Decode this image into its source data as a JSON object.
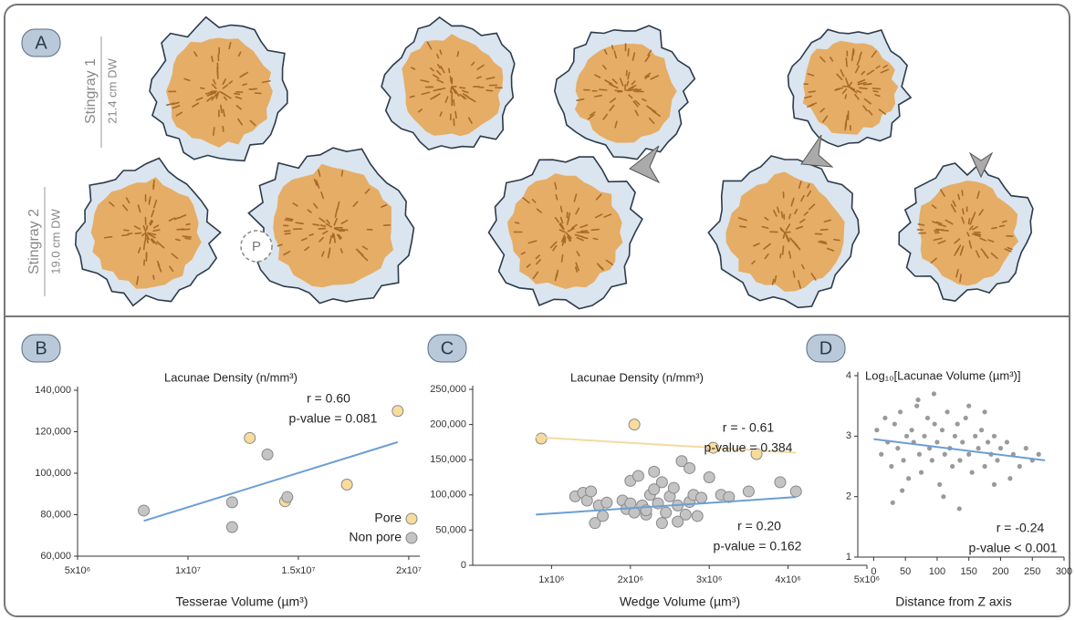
{
  "panel_labels": [
    "A",
    "B",
    "C",
    "D"
  ],
  "specimens": [
    {
      "name": "Stingray 1",
      "size": "21.4 cm DW"
    },
    {
      "name": "Stingray 2",
      "size": "19.0 cm DW"
    }
  ],
  "pore_marker": "P",
  "chart_data": [
    {
      "type": "scatter",
      "title": "Lacunae Density (n/mm³)",
      "x_label": "Tesserae Volume (µm³)",
      "xlim": [
        5000000,
        20500000
      ],
      "ylim": [
        60000,
        140000
      ],
      "xticks": [
        {
          "value": 5000000,
          "label": "5x10⁶"
        },
        {
          "value": 10000000,
          "label": "1x10⁷"
        },
        {
          "value": 15000000,
          "label": "1.5x10⁷"
        },
        {
          "value": 20000000,
          "label": "2x10⁷"
        }
      ],
      "yticks": [
        {
          "value": 60000,
          "label": "60,000"
        },
        {
          "value": 80000,
          "label": "80,000"
        },
        {
          "value": 100000,
          "label": "100,000"
        },
        {
          "value": 120000,
          "label": "120,000"
        },
        {
          "value": 140000,
          "label": "140,000"
        }
      ],
      "series": [
        {
          "name": "Pore",
          "color": "#f7dc9c",
          "x": [
            12800000,
            14400000,
            17200000,
            19500000
          ],
          "values": [
            117000,
            86500,
            94500,
            130000
          ]
        },
        {
          "name": "Non pore",
          "color": "#c4c4c4",
          "x": [
            8000000,
            12000000,
            12000000,
            13600000,
            14500000
          ],
          "values": [
            82000,
            86000,
            74000,
            109000,
            88500
          ]
        }
      ],
      "trends": [
        {
          "color": "#6b9fd4",
          "x": [
            8000000,
            19500000
          ],
          "values": [
            77000,
            115000
          ]
        }
      ],
      "annotations": [
        "r = 0.60",
        "p-value = 0.081"
      ],
      "legend": "bottom-right"
    },
    {
      "type": "scatter",
      "title": "Lacunae Density (n/mm³)",
      "x_label": "Wedge Volume (µm³)",
      "xlim": [
        0,
        5000000
      ],
      "ylim": [
        0,
        250000
      ],
      "xticks": [
        {
          "value": 1000000,
          "label": "1x10⁶"
        },
        {
          "value": 2000000,
          "label": "2x10⁶"
        },
        {
          "value": 3000000,
          "label": "3x10⁶"
        },
        {
          "value": 4000000,
          "label": "4x10⁶"
        },
        {
          "value": 5000000,
          "label": "5x10⁶"
        }
      ],
      "yticks": [
        0,
        {
          "value": 50000,
          "label": "50,000"
        },
        {
          "value": 100000,
          "label": "100,000"
        },
        {
          "value": 150000,
          "label": "150,000"
        },
        {
          "value": 200000,
          "label": "200,000"
        },
        {
          "value": 250000,
          "label": "250,000"
        }
      ],
      "series": [
        {
          "color": "#f7dc9c",
          "x": [
            870000,
            2050000,
            3050000,
            3600000
          ],
          "values": [
            180000,
            200000,
            167000,
            158000
          ]
        },
        {
          "color": "#c4c4c4",
          "x": [
            1300000,
            1400000,
            1450000,
            1500000,
            1550000,
            1600000,
            1650000,
            1700000,
            1900000,
            1950000,
            2000000,
            2050000,
            2100000,
            2150000,
            2200000,
            2250000,
            2300000,
            2350000,
            2400000,
            2450000,
            2500000,
            2550000,
            2600000,
            2650000,
            2700000,
            2750000,
            2800000,
            2850000,
            2900000,
            3000000,
            3150000,
            3250000,
            3500000,
            3900000,
            4100000,
            2200000,
            2400000,
            2600000,
            2750000,
            2000000,
            2300000
          ],
          "values": [
            98000,
            103000,
            92000,
            105000,
            60000,
            85000,
            70000,
            89000,
            92000,
            80000,
            120000,
            75000,
            127000,
            85000,
            72000,
            100000,
            133000,
            88000,
            118000,
            75000,
            98000,
            110000,
            85000,
            148000,
            72000,
            90000,
            100000,
            70000,
            96000,
            125000,
            100000,
            97000,
            105000,
            118000,
            105000,
            78000,
            60000,
            62000,
            138000,
            88000,
            108000
          ]
        }
      ],
      "trends": [
        {
          "color": "#f5d9a0",
          "x": [
            800000,
            4100000
          ],
          "values": [
            182000,
            160000
          ]
        },
        {
          "color": "#6b9fd4",
          "x": [
            800000,
            4100000
          ],
          "values": [
            72000,
            97000
          ]
        }
      ],
      "annotations": [
        "r = - 0.61",
        "p-value = 0.384",
        "r = 0.20",
        "p-value = 0.162"
      ]
    },
    {
      "type": "scatter",
      "title": "Log₁₀[Lacunae Volume (µm³)]",
      "x_label": "Distance from Z axis",
      "xlim": [
        -25,
        300
      ],
      "ylim": [
        1,
        4
      ],
      "xticks": [
        0,
        50,
        100,
        150,
        200,
        250,
        300
      ],
      "yticks": [
        1,
        2,
        3,
        4
      ],
      "series": [
        {
          "color": "#9a9a9a",
          "x": [
            5,
            12,
            18,
            22,
            28,
            33,
            38,
            42,
            47,
            52,
            55,
            60,
            63,
            68,
            72,
            75,
            80,
            85,
            88,
            92,
            96,
            100,
            104,
            108,
            112,
            116,
            120,
            124,
            128,
            132,
            136,
            140,
            145,
            150,
            155,
            160,
            165,
            170,
            175,
            180,
            185,
            190,
            195,
            200,
            210,
            220,
            230,
            240,
            250,
            260,
            30,
            70,
            110,
            150,
            190,
            45,
            95,
            135,
            175,
            215
          ],
          "values": [
            3.1,
            2.7,
            3.3,
            2.9,
            2.5,
            3.2,
            2.8,
            3.4,
            2.6,
            3.0,
            2.3,
            3.1,
            2.9,
            3.5,
            2.7,
            2.4,
            3.0,
            3.3,
            2.8,
            2.6,
            3.2,
            2.9,
            2.2,
            3.1,
            2.7,
            3.4,
            2.8,
            2.5,
            3.0,
            3.2,
            2.6,
            2.9,
            3.3,
            2.7,
            2.4,
            3.0,
            2.8,
            3.1,
            2.5,
            2.9,
            2.7,
            3.0,
            2.6,
            2.8,
            2.9,
            2.7,
            2.5,
            2.8,
            2.6,
            2.7,
            1.9,
            3.6,
            2.0,
            3.5,
            2.2,
            2.1,
            3.7,
            1.8,
            3.4,
            2.3
          ]
        }
      ],
      "trends": [
        {
          "color": "#6b9fd4",
          "x": [
            0,
            270
          ],
          "values": [
            2.95,
            2.6
          ]
        }
      ],
      "annotations": [
        "r = -0.24",
        "p-value < 0.001"
      ]
    }
  ]
}
